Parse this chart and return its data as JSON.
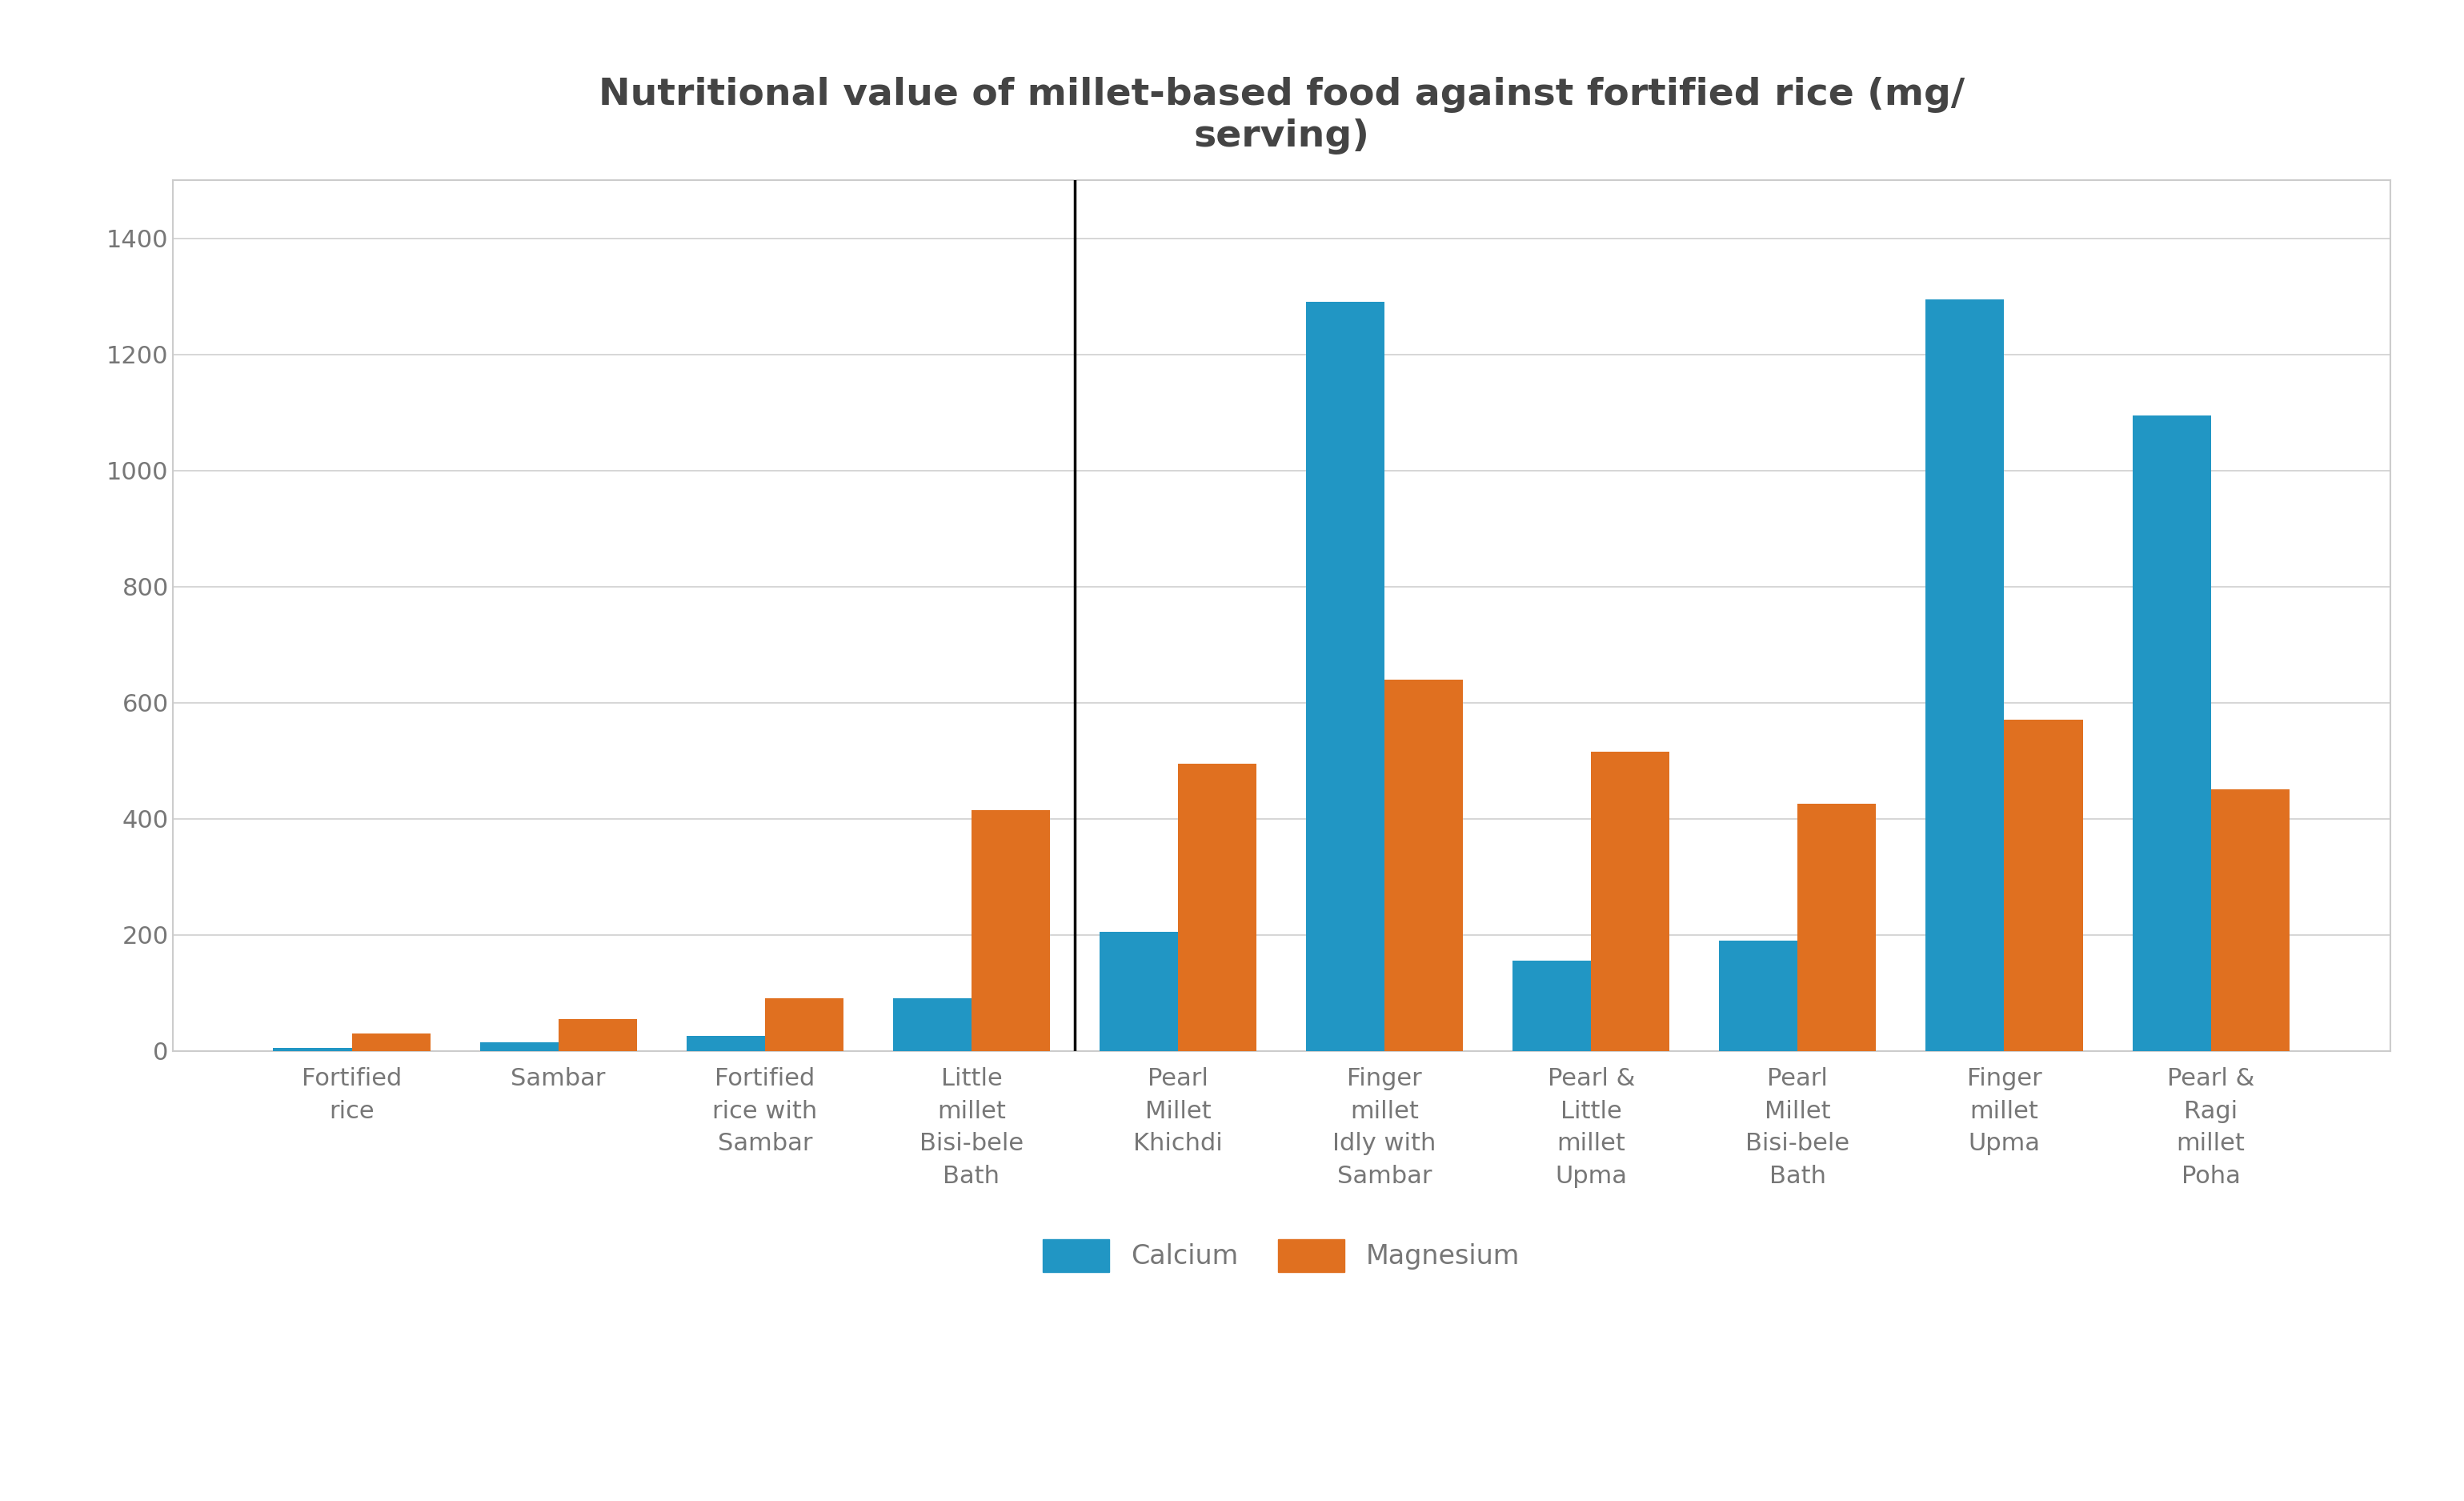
{
  "title": "Nutritional value of millet-based food against fortified rice (mg/\nserving)",
  "categories": [
    "Fortified\nrice",
    "Sambar",
    "Fortified\nrice with\nSambar",
    "Little\nmillet\nBisi-bele\nBath",
    "Pearl\nMillet\nKhichdi",
    "Finger\nmillet\nIdly with\nSambar",
    "Pearl &\nLittle\nmillet\nUpma",
    "Pearl\nMillet\nBisi-bele\nBath",
    "Finger\nmillet\nUpma",
    "Pearl &\nRagi\nmillet\nPoha"
  ],
  "calcium": [
    5,
    15,
    25,
    90,
    205,
    1290,
    155,
    190,
    1295,
    1095
  ],
  "magnesium": [
    30,
    55,
    90,
    415,
    495,
    640,
    515,
    425,
    570,
    450
  ],
  "calcium_color": "#2196c4",
  "magnesium_color": "#e07020",
  "ylim": [
    0,
    1500
  ],
  "yticks": [
    0,
    200,
    400,
    600,
    800,
    1000,
    1200,
    1400
  ],
  "vline_x": 3.5,
  "background_color": "#ffffff",
  "outer_border_color": "#cccccc",
  "title_fontsize": 34,
  "tick_fontsize": 22,
  "legend_fontsize": 24,
  "axis_color": "#777777",
  "grid_color": "#d0d0d0",
  "bar_width": 0.38
}
